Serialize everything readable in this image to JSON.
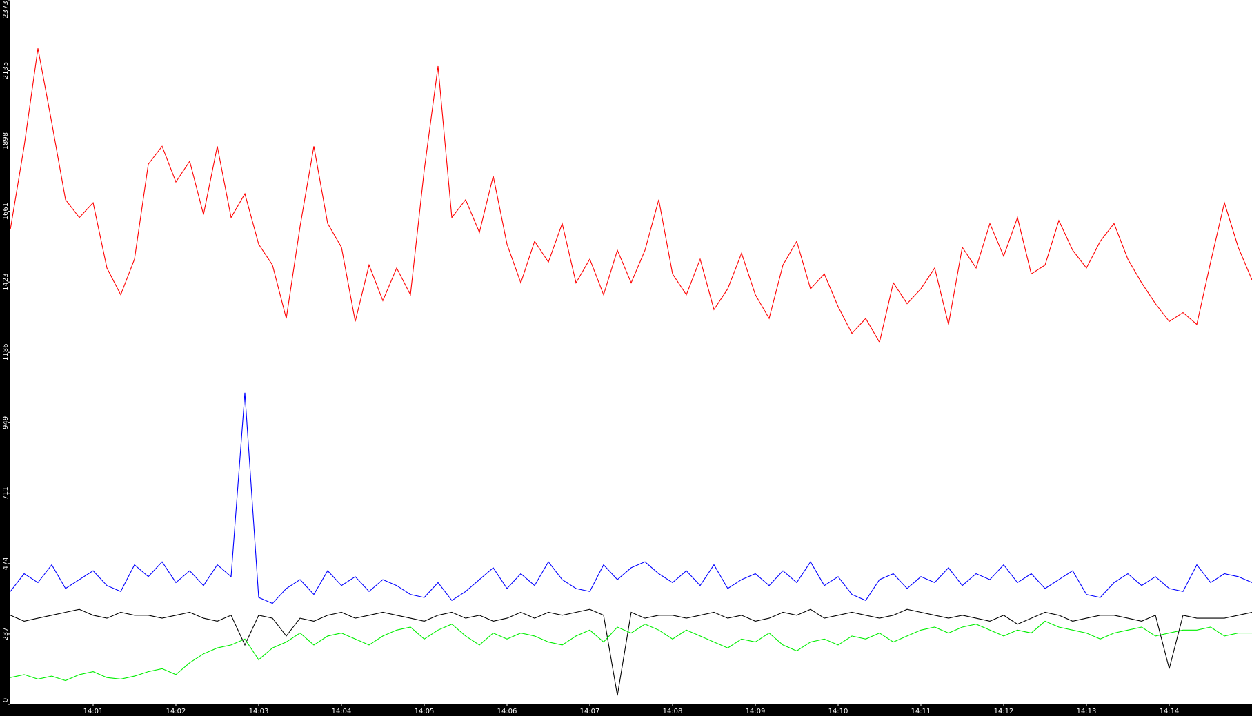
{
  "chart_data": {
    "type": "line",
    "categories": [
      null,
      null,
      null,
      null,
      null,
      null,
      "14:01",
      null,
      null,
      null,
      null,
      null,
      "14:02",
      null,
      null,
      null,
      null,
      null,
      "14:03",
      null,
      null,
      null,
      null,
      null,
      "14:04",
      null,
      null,
      null,
      null,
      null,
      "14:05",
      null,
      null,
      null,
      null,
      null,
      "14:06",
      null,
      null,
      null,
      null,
      null,
      "14:07",
      null,
      null,
      null,
      null,
      null,
      "14:08",
      null,
      null,
      null,
      null,
      null,
      "14:09",
      null,
      null,
      null,
      null,
      null,
      "14:10",
      null,
      null,
      null,
      null,
      null,
      "14:11",
      null,
      null,
      null,
      null,
      null,
      "14:12",
      null,
      null,
      null,
      null,
      null,
      "14:13",
      null,
      null,
      null,
      null,
      null,
      "14:14",
      null,
      null,
      null,
      null,
      null,
      null
    ],
    "series": [
      {
        "color": "#ff0000",
        "values": [
          1600,
          1880,
          2210,
          1960,
          1700,
          1640,
          1690,
          1470,
          1380,
          1500,
          1820,
          1880,
          1760,
          1830,
          1650,
          1880,
          1640,
          1720,
          1550,
          1480,
          1300,
          1610,
          1880,
          1620,
          1540,
          1290,
          1480,
          1360,
          1470,
          1380,
          1800,
          2150,
          1640,
          1700,
          1590,
          1780,
          1550,
          1420,
          1560,
          1490,
          1620,
          1420,
          1500,
          1380,
          1530,
          1420,
          1530,
          1700,
          1450,
          1380,
          1500,
          1330,
          1400,
          1520,
          1380,
          1300,
          1480,
          1560,
          1400,
          1450,
          1340,
          1250,
          1300,
          1220,
          1420,
          1350,
          1400,
          1470,
          1280,
          1540,
          1470,
          1620,
          1510,
          1640,
          1450,
          1480,
          1630,
          1530,
          1470,
          1560,
          1620,
          1500,
          1420,
          1350,
          1290,
          1320,
          1280,
          1490,
          1690,
          1540,
          1430
        ]
      },
      {
        "color": "#0000ff",
        "values": [
          380,
          440,
          410,
          470,
          390,
          420,
          450,
          400,
          380,
          470,
          430,
          480,
          410,
          450,
          400,
          470,
          430,
          1050,
          360,
          340,
          390,
          420,
          370,
          450,
          400,
          430,
          380,
          420,
          400,
          370,
          360,
          410,
          350,
          380,
          420,
          460,
          390,
          440,
          400,
          480,
          420,
          390,
          380,
          470,
          420,
          460,
          480,
          440,
          410,
          450,
          400,
          470,
          390,
          420,
          440,
          400,
          450,
          410,
          480,
          400,
          430,
          370,
          350,
          420,
          440,
          390,
          430,
          410,
          460,
          400,
          440,
          420,
          470,
          410,
          440,
          390,
          420,
          450,
          370,
          360,
          410,
          440,
          400,
          430,
          390,
          380,
          470,
          410,
          440,
          430,
          410
        ]
      },
      {
        "color": "#000000",
        "values": [
          300,
          280,
          290,
          300,
          310,
          320,
          300,
          290,
          310,
          300,
          300,
          290,
          300,
          310,
          290,
          280,
          300,
          200,
          300,
          290,
          230,
          290,
          280,
          300,
          310,
          290,
          300,
          310,
          300,
          290,
          280,
          300,
          310,
          290,
          300,
          280,
          290,
          310,
          290,
          310,
          300,
          310,
          320,
          300,
          30,
          310,
          290,
          300,
          300,
          290,
          300,
          310,
          290,
          300,
          280,
          290,
          310,
          300,
          320,
          290,
          300,
          310,
          300,
          290,
          300,
          320,
          310,
          300,
          290,
          300,
          290,
          280,
          300,
          270,
          290,
          310,
          300,
          280,
          290,
          300,
          300,
          290,
          280,
          300,
          120,
          300,
          290,
          290,
          290,
          300,
          310
        ]
      },
      {
        "color": "#00ee00",
        "values": [
          90,
          100,
          85,
          95,
          80,
          100,
          110,
          90,
          85,
          95,
          110,
          120,
          100,
          140,
          170,
          190,
          200,
          220,
          150,
          190,
          210,
          240,
          200,
          230,
          240,
          220,
          200,
          230,
          250,
          260,
          220,
          250,
          270,
          230,
          200,
          240,
          220,
          240,
          230,
          210,
          200,
          230,
          250,
          210,
          260,
          240,
          270,
          250,
          220,
          250,
          230,
          210,
          190,
          220,
          210,
          240,
          200,
          180,
          210,
          220,
          200,
          230,
          220,
          240,
          210,
          230,
          250,
          260,
          240,
          260,
          270,
          250,
          230,
          250,
          240,
          280,
          260,
          250,
          240,
          220,
          240,
          250,
          260,
          230,
          240,
          250,
          250,
          260,
          230,
          240,
          240
        ]
      }
    ],
    "ylim": [
      0,
      2373
    ],
    "yticks": [
      0,
      237,
      474,
      711,
      949,
      1186,
      1423,
      1661,
      1898,
      2135,
      2373
    ],
    "grid": false
  }
}
